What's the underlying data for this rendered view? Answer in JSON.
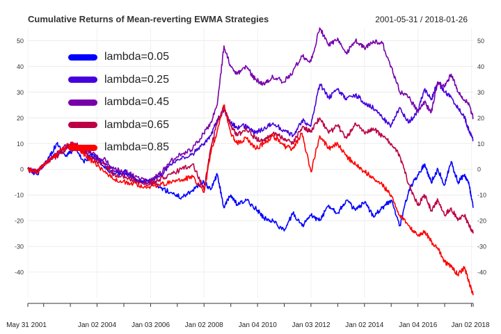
{
  "header": {
    "title": "Cumulative Returns of Mean-reverting EWMA Strategies",
    "date_range": "2001-05-31 / 2018-01-26"
  },
  "chart_data": {
    "type": "line",
    "title": "Cumulative Returns of Mean-reverting EWMA Strategies",
    "xlabel": "",
    "ylabel": "",
    "x_range": [
      "2001-05-31",
      "2018-01-26"
    ],
    "ylim": [
      -50,
      55
    ],
    "y_ticks": [
      -40,
      -30,
      -20,
      -10,
      0,
      10,
      20,
      30,
      40,
      50
    ],
    "x_tick_labels": [
      {
        "date": "2001-05-31",
        "label": "May 31 2001"
      },
      {
        "date": "2004-01-02",
        "label": "Jan 02 2004"
      },
      {
        "date": "2006-01-03",
        "label": "Jan 03 2006"
      },
      {
        "date": "2008-01-02",
        "label": "Jan 02 2008"
      },
      {
        "date": "2010-01-04",
        "label": "Jan 04 2010"
      },
      {
        "date": "2012-01-03",
        "label": "Jan 03 2012"
      },
      {
        "date": "2014-01-02",
        "label": "Jan 02 2014"
      },
      {
        "date": "2016-01-04",
        "label": "Jan 04 2016"
      },
      {
        "date": "2018-01-02",
        "label": "Jan 02 2018"
      }
    ],
    "grid": true,
    "legend_position": "top-left",
    "series": [
      {
        "name": "lambda=0.05",
        "color": "#0000FF",
        "x": [
          "2001-05-31",
          "2001-10-01",
          "2002-03-01",
          "2002-07-01",
          "2002-11-01",
          "2003-03-01",
          "2003-07-01",
          "2003-11-01",
          "2004-04-01",
          "2004-09-01",
          "2005-02-01",
          "2005-07-01",
          "2005-12-01",
          "2006-05-01",
          "2006-10-01",
          "2007-03-01",
          "2007-08-01",
          "2008-01-02",
          "2008-04-01",
          "2008-07-01",
          "2008-10-01",
          "2009-01-01",
          "2009-04-01",
          "2009-08-01",
          "2009-12-01",
          "2010-04-01",
          "2010-08-01",
          "2011-01-01",
          "2011-05-01",
          "2011-09-01",
          "2012-01-03",
          "2012-05-01",
          "2012-09-01",
          "2013-01-01",
          "2013-05-01",
          "2013-09-01",
          "2014-01-02",
          "2014-05-01",
          "2014-09-01",
          "2015-01-01",
          "2015-05-01",
          "2015-09-01",
          "2016-01-04",
          "2016-04-01",
          "2016-07-01",
          "2016-10-01",
          "2017-01-01",
          "2017-04-01",
          "2017-07-01",
          "2017-10-01",
          "2017-12-01",
          "2018-01-26"
        ],
        "values": [
          0,
          -2,
          4,
          10,
          5,
          8,
          3,
          6,
          1,
          -2,
          -1,
          -4,
          -5,
          -7,
          -9,
          -11,
          -8,
          -5,
          -8,
          -2,
          -15,
          -10,
          -14,
          -12,
          -15,
          -19,
          -20,
          -24,
          -17,
          -22,
          -18,
          -20,
          -14,
          -17,
          -12,
          -16,
          -13,
          -18,
          -15,
          -12,
          -22,
          -8,
          -2,
          2,
          -5,
          0,
          -6,
          3,
          -5,
          -2,
          -6,
          -15
        ]
      },
      {
        "name": "lambda=0.25",
        "color": "#4400DD",
        "x": [
          "2001-05-31",
          "2001-10-01",
          "2002-03-01",
          "2002-07-01",
          "2002-11-01",
          "2003-03-01",
          "2003-07-01",
          "2003-11-01",
          "2004-04-01",
          "2004-09-01",
          "2005-02-01",
          "2005-07-01",
          "2005-12-01",
          "2006-05-01",
          "2006-10-01",
          "2007-03-01",
          "2007-08-01",
          "2008-01-02",
          "2008-04-01",
          "2008-07-01",
          "2008-10-01",
          "2009-01-01",
          "2009-04-01",
          "2009-08-01",
          "2009-12-01",
          "2010-04-01",
          "2010-08-01",
          "2011-01-01",
          "2011-05-01",
          "2011-09-01",
          "2012-01-03",
          "2012-05-01",
          "2012-09-01",
          "2013-01-01",
          "2013-05-01",
          "2013-09-01",
          "2014-01-02",
          "2014-05-01",
          "2014-09-01",
          "2015-01-01",
          "2015-05-01",
          "2015-09-01",
          "2016-01-04",
          "2016-04-01",
          "2016-07-01",
          "2016-10-01",
          "2017-01-01",
          "2017-04-01",
          "2017-07-01",
          "2017-10-01",
          "2017-12-01",
          "2018-01-26"
        ],
        "values": [
          0,
          -1,
          3,
          6,
          8,
          9,
          7,
          5,
          3,
          -1,
          -2,
          -4,
          -5,
          -3,
          2,
          4,
          6,
          10,
          13,
          19,
          23,
          18,
          16,
          17,
          14,
          16,
          18,
          15,
          13,
          19,
          17,
          33,
          28,
          31,
          27,
          29,
          26,
          24,
          20,
          17,
          24,
          18,
          23,
          31,
          27,
          34,
          30,
          28,
          24,
          20,
          15,
          11
        ]
      },
      {
        "name": "lambda=0.45",
        "color": "#7700AA",
        "x": [
          "2001-05-31",
          "2001-10-01",
          "2002-03-01",
          "2002-07-01",
          "2002-11-01",
          "2003-03-01",
          "2003-07-01",
          "2003-11-01",
          "2004-04-01",
          "2004-09-01",
          "2005-02-01",
          "2005-07-01",
          "2005-12-01",
          "2006-05-01",
          "2006-10-01",
          "2007-03-01",
          "2007-08-01",
          "2008-01-02",
          "2008-04-01",
          "2008-07-01",
          "2008-10-01",
          "2009-01-01",
          "2009-04-01",
          "2009-08-01",
          "2009-12-01",
          "2010-04-01",
          "2010-08-01",
          "2011-01-01",
          "2011-05-01",
          "2011-09-01",
          "2012-01-03",
          "2012-05-01",
          "2012-09-01",
          "2013-01-01",
          "2013-05-01",
          "2013-09-01",
          "2014-01-02",
          "2014-05-01",
          "2014-09-01",
          "2015-01-01",
          "2015-05-01",
          "2015-09-01",
          "2016-01-04",
          "2016-04-01",
          "2016-07-01",
          "2016-10-01",
          "2017-01-01",
          "2017-04-01",
          "2017-07-01",
          "2017-10-01",
          "2017-12-01",
          "2018-01-26"
        ],
        "values": [
          0,
          -1,
          3,
          6,
          9,
          10,
          8,
          6,
          4,
          0,
          -1,
          -3,
          -5,
          -2,
          3,
          6,
          8,
          14,
          18,
          25,
          48,
          40,
          37,
          40,
          35,
          33,
          36,
          34,
          38,
          44,
          42,
          55,
          48,
          51,
          45,
          50,
          47,
          50,
          49,
          40,
          30,
          28,
          22,
          26,
          22,
          34,
          32,
          37,
          30,
          27,
          25,
          20
        ]
      },
      {
        "name": "lambda=0.65",
        "color": "#BB0044",
        "x": [
          "2001-05-31",
          "2001-10-01",
          "2002-03-01",
          "2002-07-01",
          "2002-11-01",
          "2003-03-01",
          "2003-07-01",
          "2003-11-01",
          "2004-04-01",
          "2004-09-01",
          "2005-02-01",
          "2005-07-01",
          "2005-12-01",
          "2006-05-01",
          "2006-10-01",
          "2007-03-01",
          "2007-08-01",
          "2008-01-02",
          "2008-04-01",
          "2008-07-01",
          "2008-10-01",
          "2009-01-01",
          "2009-04-01",
          "2009-08-01",
          "2009-12-01",
          "2010-04-01",
          "2010-08-01",
          "2011-01-01",
          "2011-05-01",
          "2011-09-01",
          "2012-01-03",
          "2012-05-01",
          "2012-09-01",
          "2013-01-01",
          "2013-05-01",
          "2013-09-01",
          "2014-01-02",
          "2014-05-01",
          "2014-09-01",
          "2015-01-01",
          "2015-05-01",
          "2015-09-01",
          "2016-01-04",
          "2016-04-01",
          "2016-07-01",
          "2016-10-01",
          "2017-01-01",
          "2017-04-01",
          "2017-07-01",
          "2017-10-01",
          "2017-12-01",
          "2018-01-26"
        ],
        "values": [
          0,
          -1,
          3,
          5,
          8,
          9,
          7,
          4,
          2,
          -2,
          -3,
          -5,
          -6,
          -4,
          -2,
          0,
          2,
          -8,
          8,
          18,
          24,
          17,
          13,
          16,
          12,
          11,
          14,
          12,
          10,
          16,
          15,
          20,
          14,
          17,
          12,
          18,
          14,
          16,
          13,
          10,
          5,
          -6,
          -14,
          -10,
          -16,
          -12,
          -18,
          -15,
          -20,
          -18,
          -22,
          -25
        ]
      },
      {
        "name": "lambda=0.85",
        "color": "#FF0000",
        "x": [
          "2001-05-31",
          "2001-10-01",
          "2002-03-01",
          "2002-07-01",
          "2002-11-01",
          "2003-03-01",
          "2003-07-01",
          "2003-11-01",
          "2004-04-01",
          "2004-09-01",
          "2005-02-01",
          "2005-07-01",
          "2005-12-01",
          "2006-05-01",
          "2006-10-01",
          "2007-03-01",
          "2007-08-01",
          "2008-01-02",
          "2008-04-01",
          "2008-07-01",
          "2008-10-01",
          "2009-01-01",
          "2009-04-01",
          "2009-08-01",
          "2009-12-01",
          "2010-04-01",
          "2010-08-01",
          "2011-01-01",
          "2011-05-01",
          "2011-09-01",
          "2012-01-03",
          "2012-05-01",
          "2012-09-01",
          "2013-01-01",
          "2013-05-01",
          "2013-09-01",
          "2014-01-02",
          "2014-05-01",
          "2014-09-01",
          "2015-01-01",
          "2015-05-01",
          "2015-09-01",
          "2016-01-04",
          "2016-04-01",
          "2016-07-01",
          "2016-10-01",
          "2017-01-01",
          "2017-04-01",
          "2017-07-01",
          "2017-10-01",
          "2017-12-01",
          "2018-01-26"
        ],
        "values": [
          0,
          -1,
          3,
          6,
          9,
          10,
          6,
          3,
          -1,
          -4,
          -5,
          -6,
          -7,
          -6,
          -5,
          -4,
          -3,
          -9,
          6,
          15,
          25,
          14,
          10,
          12,
          8,
          10,
          13,
          9,
          8,
          14,
          -1,
          13,
          8,
          10,
          5,
          2,
          -1,
          -3,
          -6,
          -10,
          -18,
          -22,
          -26,
          -24,
          -28,
          -31,
          -36,
          -38,
          -41,
          -38,
          -44,
          -49
        ]
      }
    ]
  }
}
